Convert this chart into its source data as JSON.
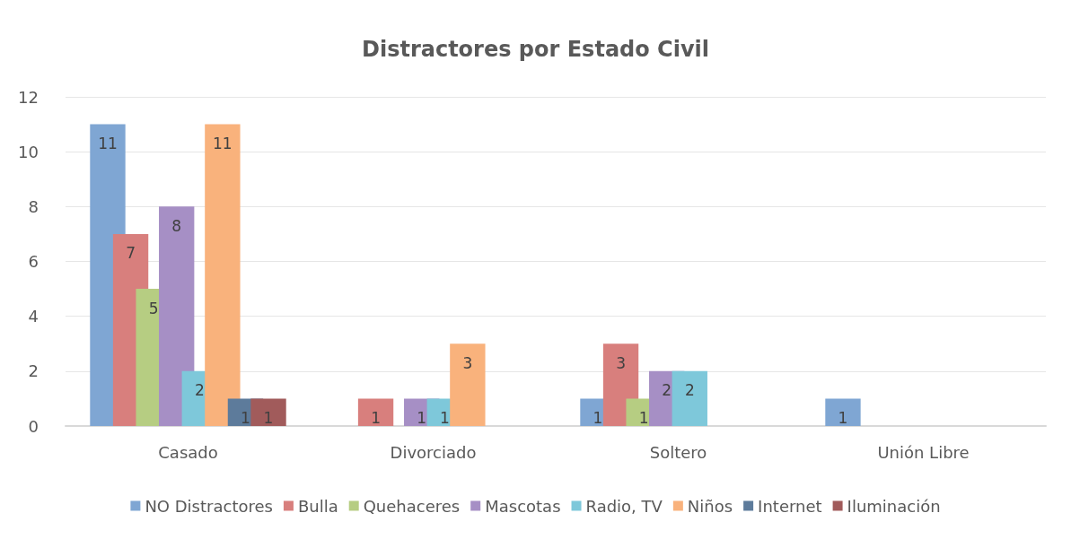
{
  "chart_data": {
    "type": "bar",
    "title": "Distractores por Estado Civil",
    "categories": [
      "Casado",
      "Divorciado",
      "Soltero",
      "Unión Libre"
    ],
    "series": [
      {
        "name": "NO Distractores",
        "color": "#7fa6d3",
        "values": [
          11,
          null,
          1,
          1
        ]
      },
      {
        "name": "Bulla",
        "color": "#d87f7d",
        "values": [
          7,
          1,
          3,
          null
        ]
      },
      {
        "name": "Quehaceres",
        "color": "#b6cd82",
        "values": [
          5,
          null,
          1,
          null
        ]
      },
      {
        "name": "Mascotas",
        "color": "#a68fc5",
        "values": [
          8,
          1,
          2,
          null
        ]
      },
      {
        "name": "Radio, TV",
        "color": "#7ec8da",
        "values": [
          2,
          1,
          2,
          null
        ]
      },
      {
        "name": "Niños",
        "color": "#f9b27c",
        "values": [
          11,
          3,
          null,
          null
        ]
      },
      {
        "name": "Internet",
        "color": "#5d7b9b",
        "values": [
          1,
          null,
          null,
          null
        ]
      },
      {
        "name": "Iluminación",
        "color": "#a15b5b",
        "values": [
          1,
          null,
          null,
          null
        ]
      }
    ],
    "ylim": [
      0,
      12
    ],
    "yticks": [
      0,
      2,
      4,
      6,
      8,
      10,
      12
    ],
    "grid": "y",
    "legend": "bottom",
    "data_labels": true
  }
}
